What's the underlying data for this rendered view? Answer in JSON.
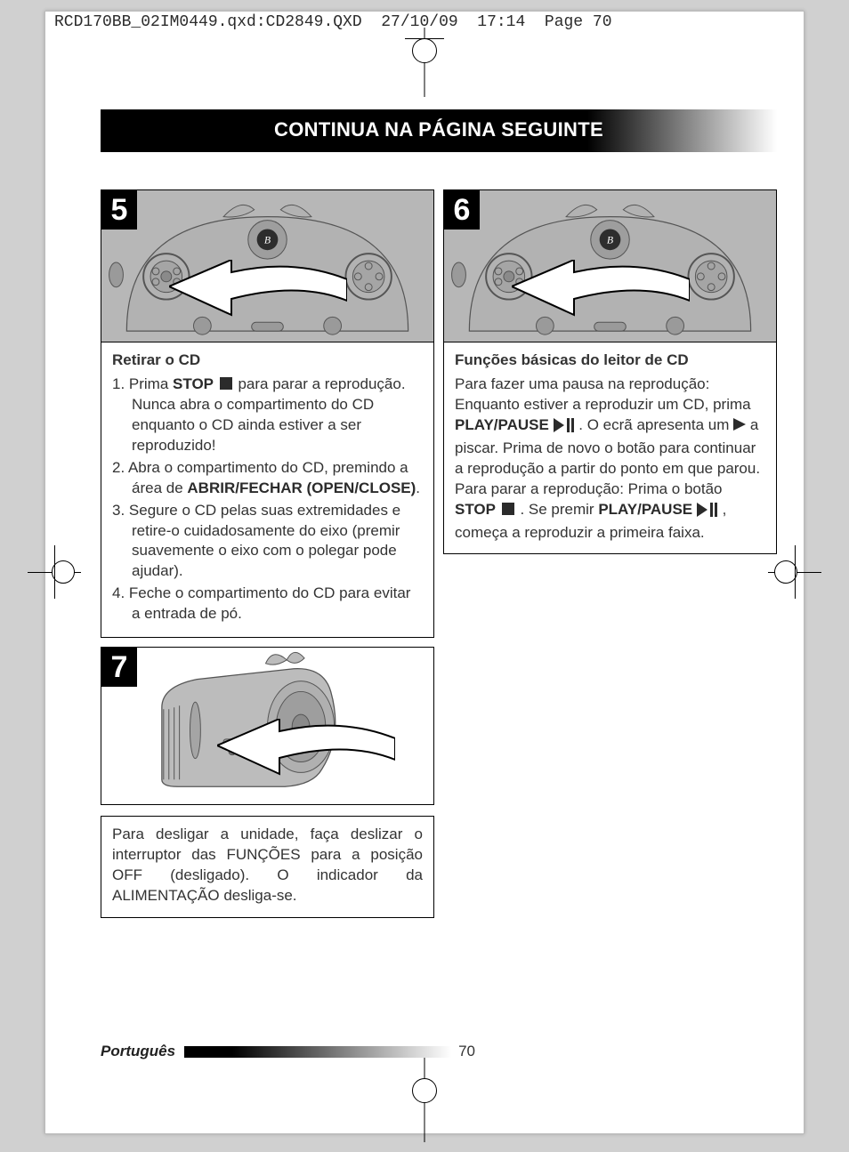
{
  "meta": {
    "header": "RCD170BB_02IM0449.qxd:CD2849.QXD  27/10/09  17:14  Page 70"
  },
  "banner": "CONTINUA NA PÁGINA SEGUINTE",
  "steps": {
    "s5": {
      "num": "5",
      "title": "Retirar o CD",
      "items": [
        "1.  Prima <b>STOP</b> <span class=\"icon-stop\" data-name=\"stop-icon\" data-interactable=\"false\"></span> para parar a reprodução. Nunca abra o compartimento do CD enquanto o CD ainda estiver a ser reproduzido!",
        "2. Abra o compartimento do CD, premindo a área de <b>ABRIR/FECHAR (OPEN/CLOSE)</b>.",
        "3. Segure o CD pelas suas extremidades e retire-o cuidadosamente do eixo (premir suavemente o eixo com o polegar pode ajudar).",
        "4. Feche o compartimento do CD para evitar a entrada de pó."
      ]
    },
    "s6": {
      "num": "6",
      "title": "Funções básicas do leitor de CD",
      "body": "Para fazer uma pausa na reprodução: Enquanto estiver a reproduzir um CD, prima <b>PLAY/PAUSE</b> <span class=\"icon-playpause\" data-name=\"play-pause-icon\" data-interactable=\"false\"><svg width=\"24\" height=\"16\"><polygon points=\"0,0 12,8 0,16\" fill=\"#2b2b2b\"/><rect x=\"15\" y=\"0\" width=\"3\" height=\"16\" fill=\"#2b2b2b\"/><rect x=\"20\" y=\"0\" width=\"3\" height=\"16\" fill=\"#2b2b2b\"/></svg></span> . O ecrã apresenta um <span class=\"icon-play\" data-name=\"play-icon\" data-interactable=\"false\"><svg width=\"14\" height=\"14\"><polygon points=\"0,0 14,7 0,14\" fill=\"#2b2b2b\"/></svg></span> a piscar. Prima de novo o botão para continuar a reprodução a partir do ponto em que parou.<br>Para parar a reprodução: Prima o botão <b>STOP</b> <span class=\"icon-stop\" data-name=\"stop-icon\" data-interactable=\"false\"></span> . Se premir <b>PLAY/PAUSE</b> <span class=\"icon-playpause\" data-name=\"play-pause-icon\" data-interactable=\"false\"><svg width=\"24\" height=\"16\"><polygon points=\"0,0 12,8 0,16\" fill=\"#2b2b2b\"/><rect x=\"15\" y=\"0\" width=\"3\" height=\"16\" fill=\"#2b2b2b\"/><rect x=\"20\" y=\"0\" width=\"3\" height=\"16\" fill=\"#2b2b2b\"/></svg></span> , começa a reproduzir a primeira faixa."
    },
    "s7": {
      "num": "7",
      "body": "Para desligar a unidade, faça deslizar o interruptor das FUNÇÕES para a posição OFF (desligado). O indicador da ALIMENTAÇÃO desliga-se."
    }
  },
  "footer": {
    "lang": "Português",
    "page": "70"
  },
  "styling": {
    "page_bg": "#ffffff",
    "body_bg": "#d0d0d0",
    "device_gray": "#b7b7b7",
    "text_color": "#333333",
    "banner_gradient": [
      "#000000",
      "#ffffff"
    ],
    "font_family": "Arial",
    "body_fontsize_pt": 12,
    "banner_fontsize_pt": 17
  }
}
